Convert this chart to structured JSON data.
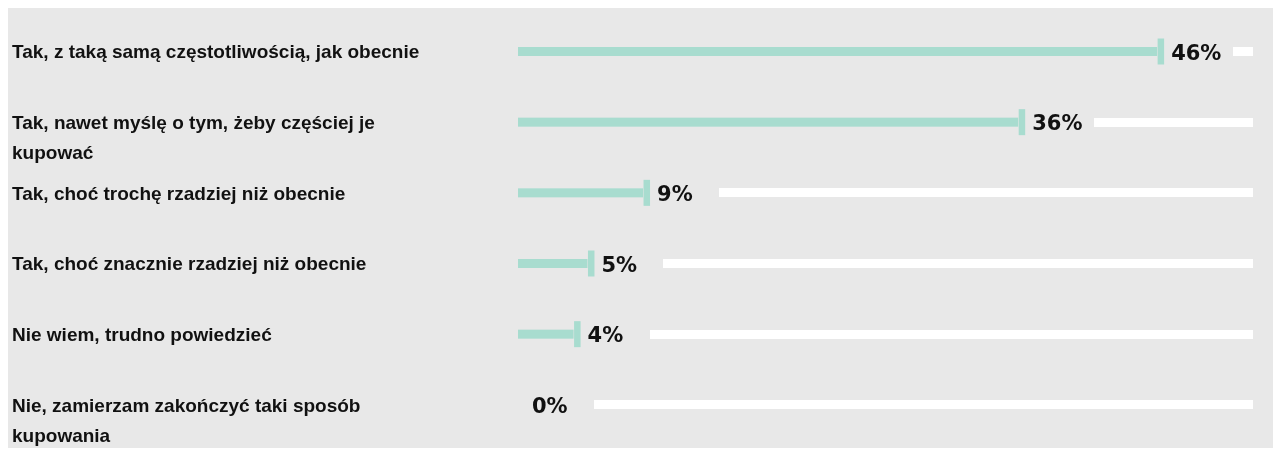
{
  "chart_data": {
    "type": "bar",
    "orientation": "horizontal",
    "categories": [
      "Tak, z taką samą częstotliwością, jak obecnie",
      "Tak, nawet myślę o tym, żeby częściej je kupować",
      "Tak, choć trochę rzadziej niż obecnie",
      "Tak, choć znacznie rzadziej niż obecnie",
      "Nie wiem, trudno powiedzieć",
      "Nie, zamierzam zakończyć taki sposób kupowania"
    ],
    "values": [
      46,
      36,
      9,
      5,
      4,
      0
    ],
    "value_labels": [
      "46%",
      "36%",
      "9%",
      "5%",
      "4%",
      "0%"
    ],
    "color": "#a8dccf",
    "tick_labels": false
  }
}
